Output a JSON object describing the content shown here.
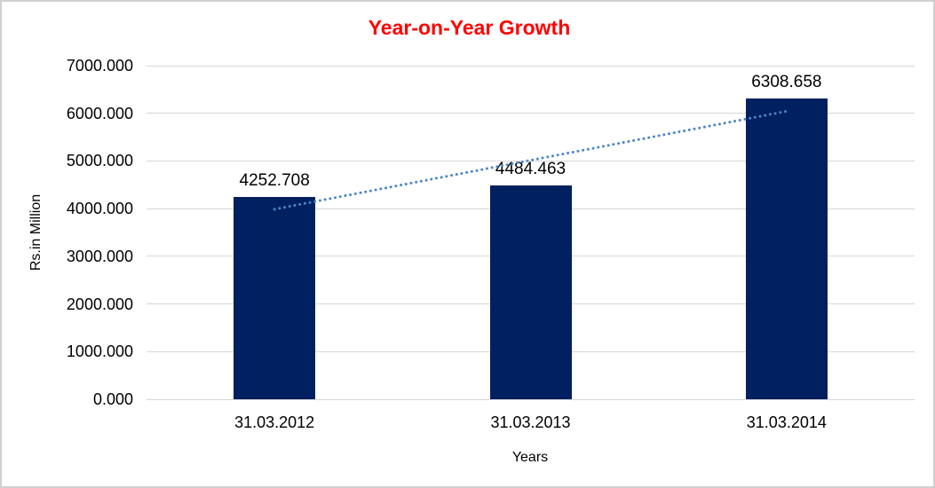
{
  "chart_data": {
    "type": "bar",
    "title": "Year-on-Year Growth",
    "title_color": "#ff0000",
    "xlabel": "Years",
    "ylabel": "Rs.in Million",
    "categories": [
      "31.03.2012",
      "31.03.2013",
      "31.03.2014"
    ],
    "values": [
      4252.708,
      4484.463,
      6308.658
    ],
    "data_labels": [
      "4252.708",
      "4484.463",
      "6308.658"
    ],
    "ylim": [
      0,
      7000
    ],
    "ytick_step": 1000,
    "ytick_labels": [
      "0.000",
      "1000.000",
      "2000.000",
      "3000.000",
      "4000.000",
      "5000.000",
      "6000.000",
      "7000.000"
    ],
    "bar_color": "#002060",
    "gridline_color": "#d6d6d6",
    "grid": true,
    "legend": "none",
    "trendline": {
      "type": "linear",
      "style": "dotted",
      "color": "#4a86c8"
    }
  }
}
